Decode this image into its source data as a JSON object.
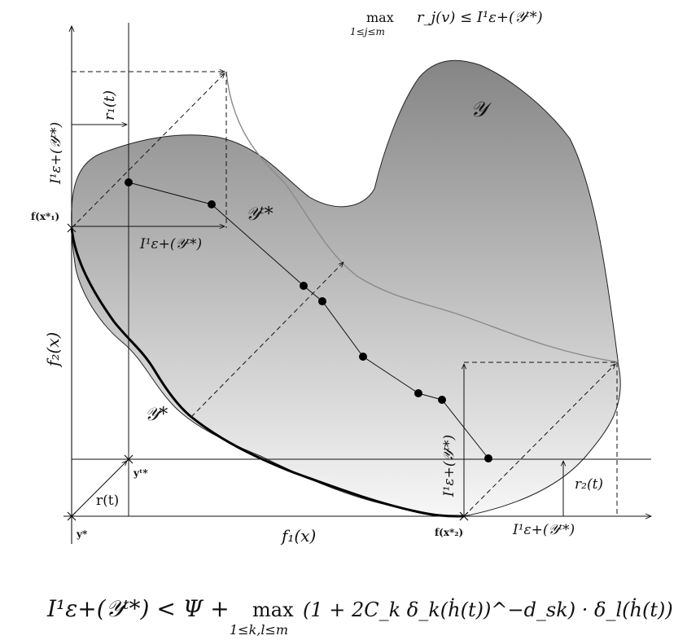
{
  "top_condition": {
    "max": "max",
    "range": "1≤j≤m",
    "rest": "r_j(v) ≤ I¹ε+(𝒴ᵗ*)"
  },
  "labels": {
    "Y": "𝒴",
    "Yt": "𝒴ᵗ*",
    "Ystar": "𝒴*",
    "f1": "f₁(x)",
    "f2": "f₂(x)",
    "r1": "r₁(t)",
    "r2": "r₂(t)",
    "r": "r(t)",
    "I_top_vertical": "I¹ε+(𝒴ᵗ*)",
    "I_left_horizontal": "I¹ε+(𝒴ᵗ*)",
    "I_right_vertical": "I¹ε+(𝒴ᵗ*)",
    "I_bottom_horizontal": "I¹ε+(𝒴ᵗ*)",
    "fx1": "f(x*₁)",
    "fx2": "f(x*₂)",
    "yt": "yᵗ*",
    "ystar": "y*"
  },
  "bottom_formula": {
    "lhs": "I¹ε+(𝒴ᵗ*) < Ψ +",
    "max": "max",
    "range": "1≤k,l≤m",
    "rhs": "(1 + 2C_k δ_k(ḣ(t))^−d_sk) · δ_l(ḣ(t))"
  },
  "colors": {
    "region_top": "#858585",
    "region_bottom": "#f7f7f7",
    "ink": "#111111",
    "light_curve": "#8a8a8a"
  }
}
